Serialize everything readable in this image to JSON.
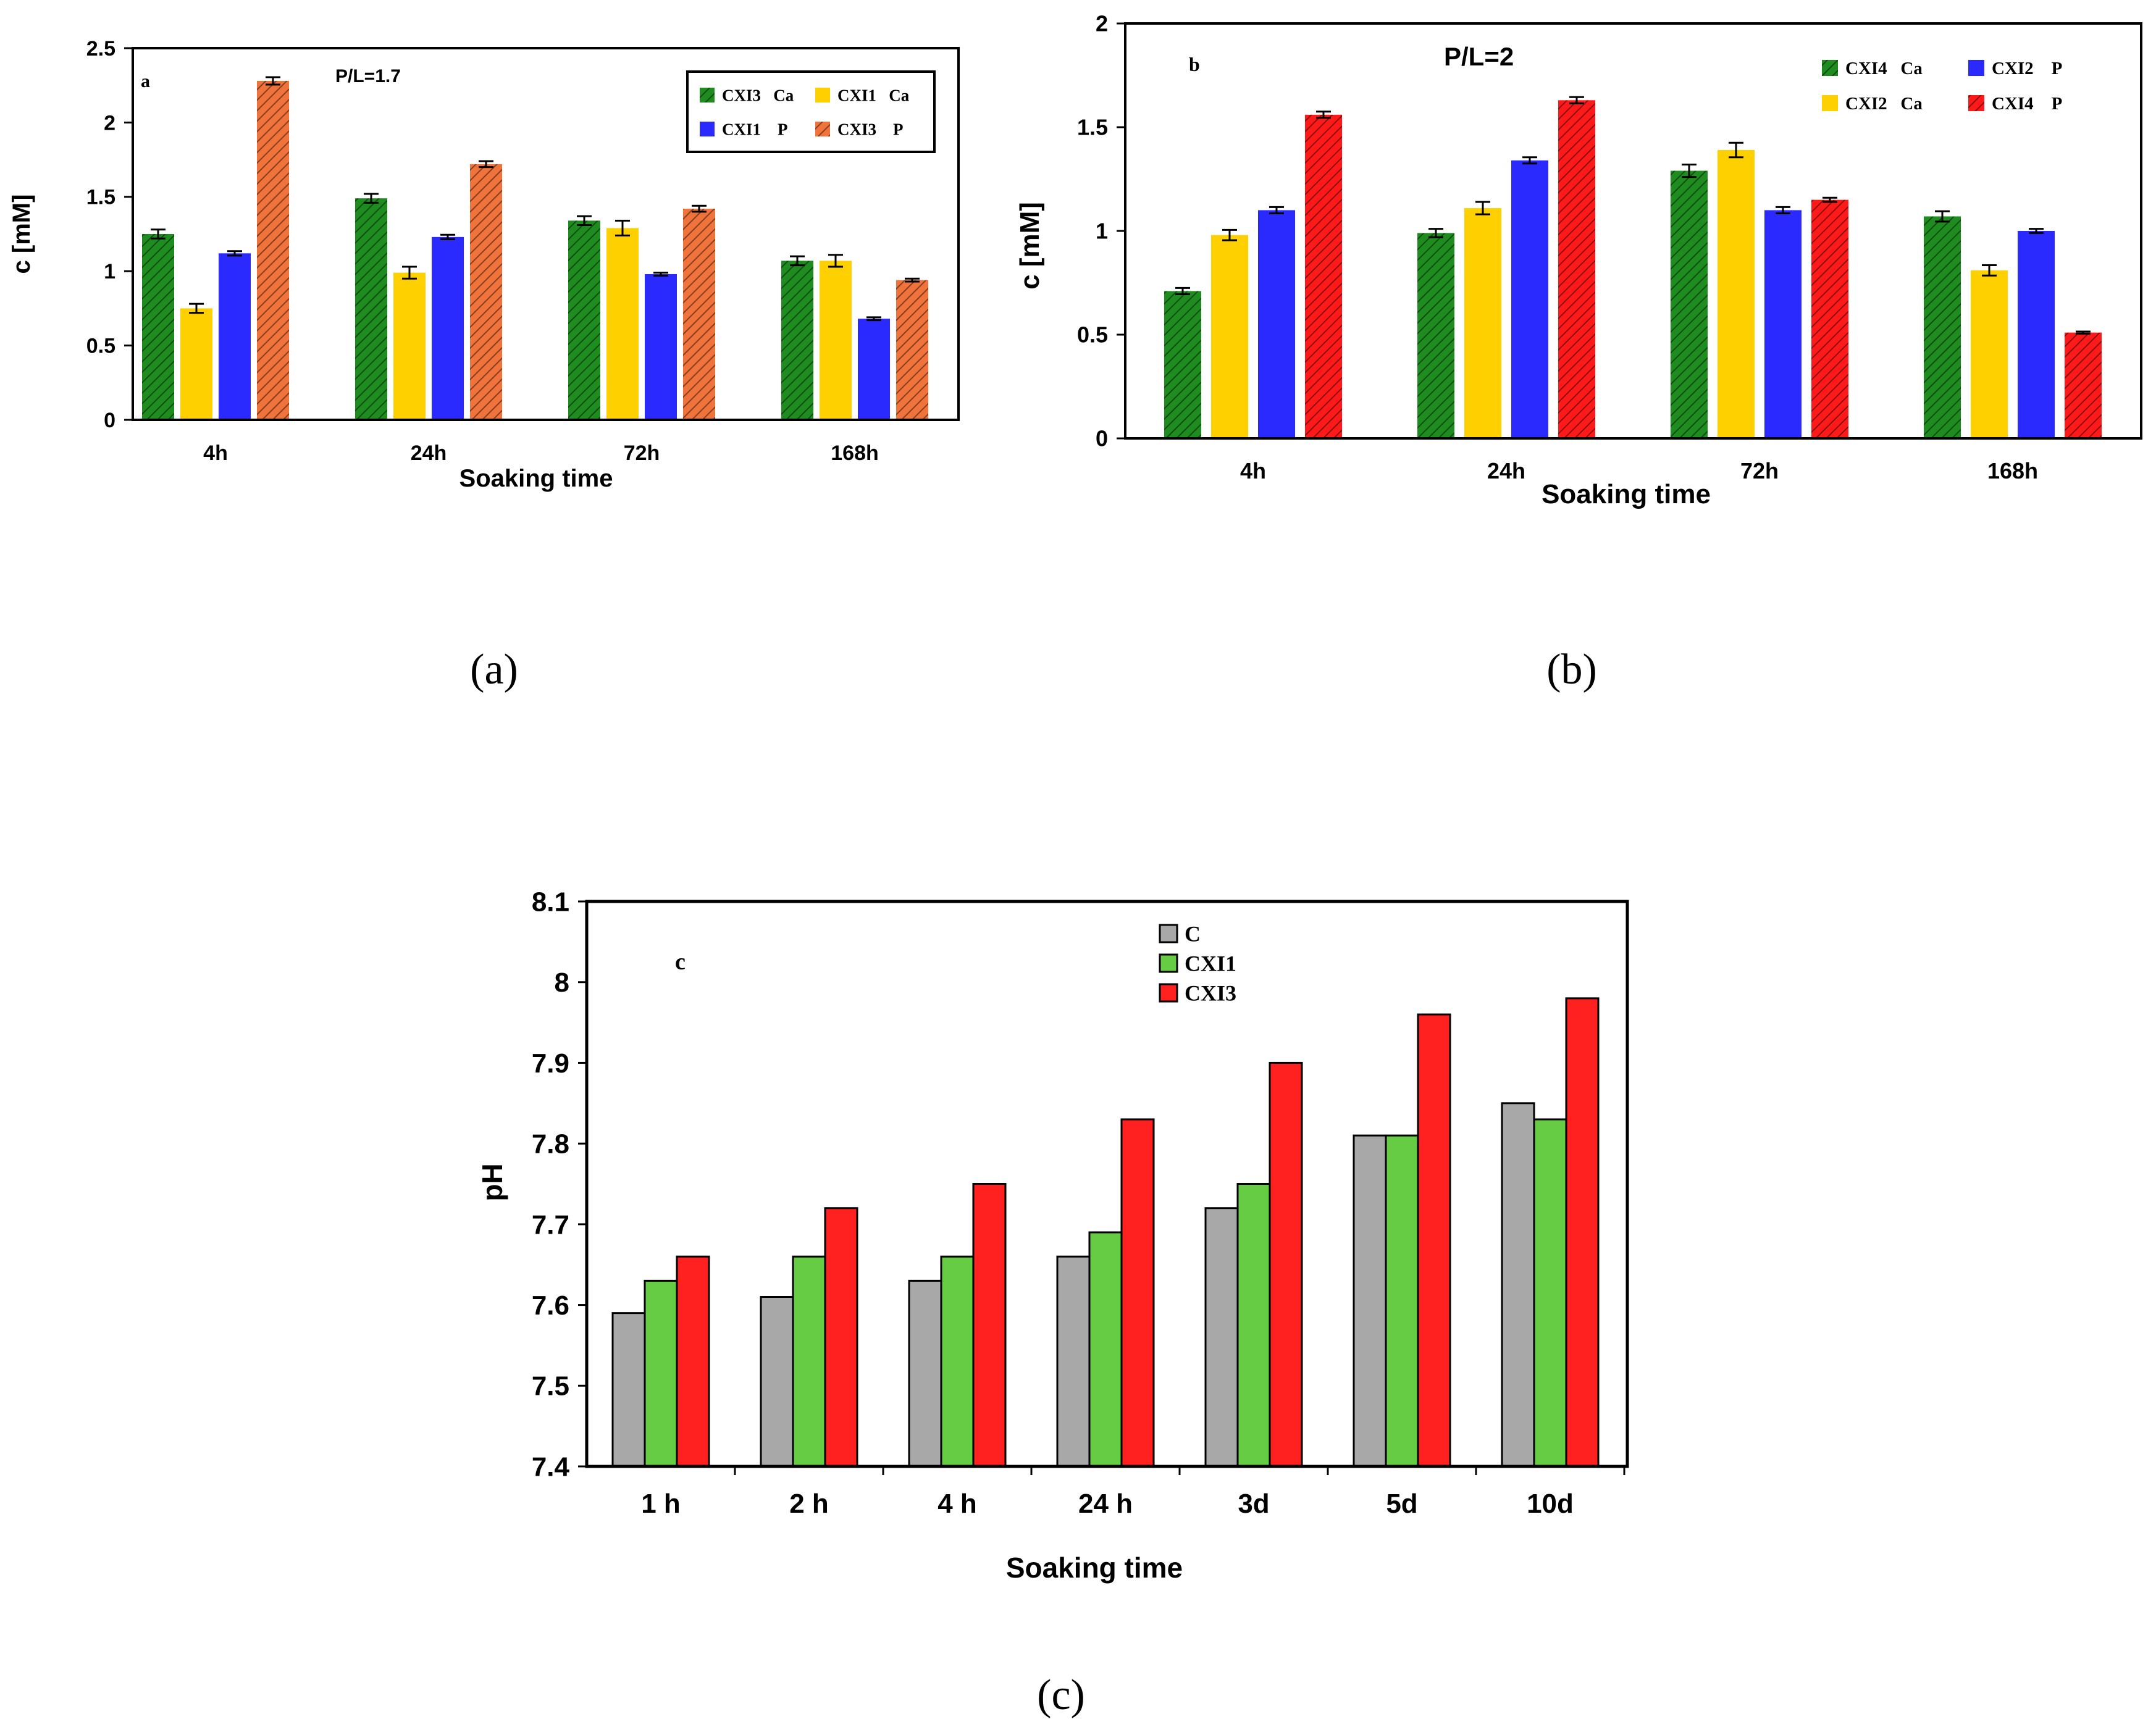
{
  "chart_data": [
    {
      "panel": "a",
      "type": "bar",
      "annotation": "P/L=1.7",
      "caption": "(a)",
      "xlabel": "Soaking time",
      "ylabel": "c [mM]",
      "categories": [
        "4h",
        "24h",
        "72h",
        "168h"
      ],
      "ylim": [
        0,
        2.5
      ],
      "yticks": [
        "0",
        "0.5",
        "1",
        "1.5",
        "2",
        "2.5"
      ],
      "yticks_values": [
        0,
        0.5,
        1,
        1.5,
        2,
        2.5
      ],
      "error_bars": true,
      "legend_position": "top-right",
      "series": [
        {
          "name": "CXI3   Ca",
          "color": "#1e8c1e",
          "pattern": "hatch",
          "values": [
            1.25,
            1.49,
            1.34,
            1.07
          ],
          "errors": [
            0.03,
            0.03,
            0.03,
            0.03
          ]
        },
        {
          "name": "CXI1   Ca",
          "color": "#ffd000",
          "pattern": "solid",
          "values": [
            0.75,
            0.99,
            1.29,
            1.07
          ],
          "errors": [
            0.03,
            0.04,
            0.05,
            0.04
          ]
        },
        {
          "name": "CXI1    P",
          "color": "#2a2aff",
          "pattern": "solid",
          "values": [
            1.12,
            1.23,
            0.98,
            0.68
          ],
          "errors": [
            0.015,
            0.015,
            0.01,
            0.01
          ]
        },
        {
          "name": "CXI3    P",
          "color": "#f0733c",
          "pattern": "hatch",
          "values": [
            2.28,
            1.72,
            1.42,
            0.94
          ],
          "errors": [
            0.025,
            0.02,
            0.02,
            0.01
          ]
        }
      ]
    },
    {
      "panel": "b",
      "type": "bar",
      "annotation": "P/L=2",
      "caption": "(b)",
      "xlabel": "Soaking time",
      "ylabel": "c [mM]",
      "categories": [
        "4h",
        "24h",
        "72h",
        "168h"
      ],
      "ylim": [
        0,
        2
      ],
      "yticks": [
        "0",
        "0.5",
        "1",
        "1.5",
        "2"
      ],
      "yticks_values": [
        0,
        0.5,
        1,
        1.5,
        2
      ],
      "error_bars": true,
      "legend_position": "top-right",
      "series": [
        {
          "name": "CXI4   Ca",
          "color": "#1e8c1e",
          "pattern": "hatch",
          "values": [
            0.71,
            0.99,
            1.29,
            1.07
          ],
          "errors": [
            0.015,
            0.02,
            0.03,
            0.025
          ]
        },
        {
          "name": "CXI2    P",
          "color": "#2a2aff",
          "pattern": "solid",
          "values": [
            1.1,
            1.34,
            1.1,
            1.0
          ],
          "errors": [
            0.015,
            0.015,
            0.015,
            0.01
          ]
        },
        {
          "name": "CXI2   Ca",
          "color": "#ffd000",
          "pattern": "solid",
          "values": [
            0.98,
            1.11,
            1.39,
            0.81
          ],
          "errors": [
            0.025,
            0.03,
            0.035,
            0.025
          ]
        },
        {
          "name": "CXI4    P",
          "color": "#ff1a1a",
          "pattern": "hatch",
          "values": [
            1.56,
            1.63,
            1.15,
            0.51
          ],
          "errors": [
            0.015,
            0.015,
            0.01,
            0.005
          ]
        }
      ],
      "plot_order": [
        0,
        2,
        1,
        3
      ]
    },
    {
      "panel": "c",
      "type": "bar",
      "caption": "(c)",
      "xlabel": "Soaking time",
      "ylabel": "pH",
      "categories": [
        "1 h",
        "2 h",
        "4 h",
        "24 h",
        "3d",
        "5d",
        "10d"
      ],
      "ylim": [
        7.4,
        8.1
      ],
      "yticks": [
        "7.4",
        "7.5",
        "7.6",
        "7.7",
        "7.8",
        "7.9",
        "8",
        "8.1"
      ],
      "yticks_values": [
        7.4,
        7.5,
        7.6,
        7.7,
        7.8,
        7.9,
        8.0,
        8.1
      ],
      "error_bars": false,
      "legend_position": "top-center",
      "series": [
        {
          "name": "C",
          "color": "#a8a8a8",
          "pattern": "solid",
          "values": [
            7.59,
            7.61,
            7.63,
            7.66,
            7.72,
            7.81,
            7.85
          ]
        },
        {
          "name": "CXI1",
          "color": "#66cc44",
          "pattern": "solid",
          "values": [
            7.63,
            7.66,
            7.66,
            7.69,
            7.75,
            7.81,
            7.83
          ]
        },
        {
          "name": "CXI3",
          "color": "#ff2020",
          "pattern": "solid",
          "values": [
            7.66,
            7.72,
            7.75,
            7.83,
            7.9,
            7.96,
            7.98
          ]
        }
      ]
    }
  ]
}
